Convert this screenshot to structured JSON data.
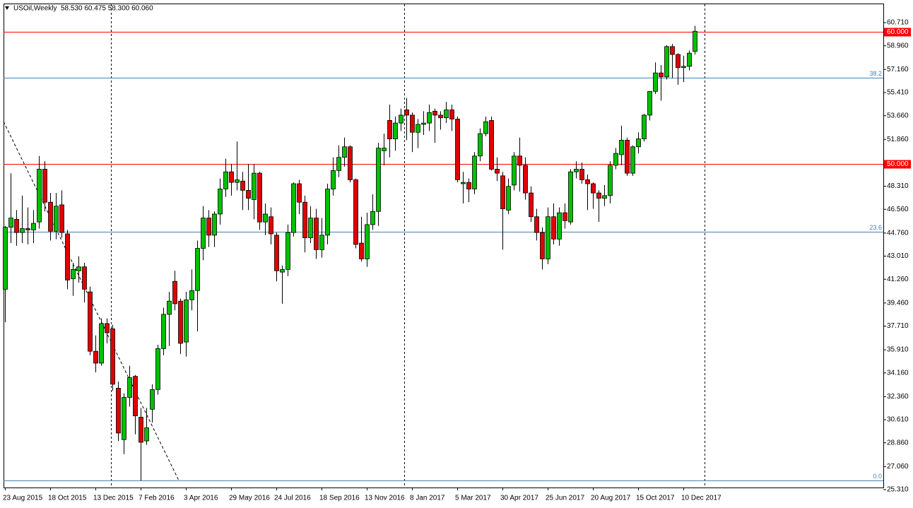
{
  "chart_data": {
    "type": "candlestick",
    "symbol": "USOil,Weekly",
    "ohlc": "58.530 60.475 58.300 60.060",
    "categories": [
      "23 Aug 2015",
      null,
      null,
      null,
      null,
      null,
      null,
      null,
      "18 Oct 2015",
      null,
      null,
      null,
      null,
      null,
      null,
      null,
      "13 Dec 2015",
      null,
      null,
      null,
      null,
      null,
      null,
      null,
      "7 Feb 2016",
      null,
      null,
      null,
      null,
      null,
      null,
      null,
      "3 Apr 2016",
      null,
      null,
      null,
      null,
      null,
      null,
      null,
      "29 May 2016",
      null,
      null,
      null,
      null,
      null,
      null,
      null,
      "24 Jul 2016",
      null,
      null,
      null,
      null,
      null,
      null,
      null,
      "18 Sep 2016",
      null,
      null,
      null,
      null,
      null,
      null,
      null,
      "13 Nov 2016",
      null,
      null,
      null,
      null,
      null,
      null,
      null,
      "8 Jan 2017",
      null,
      null,
      null,
      null,
      null,
      null,
      null,
      "5 Mar 2017",
      null,
      null,
      null,
      null,
      null,
      null,
      null,
      "30 Apr 2017",
      null,
      null,
      null,
      null,
      null,
      null,
      null,
      "25 Jun 2017",
      null,
      null,
      null,
      null,
      null,
      null,
      null,
      "20 Aug 2017",
      null,
      null,
      null,
      null,
      null,
      null,
      null,
      "15 Oct 2017",
      null,
      null,
      null,
      null,
      null,
      null,
      null,
      "10 Dec 2017",
      null,
      null
    ],
    "open": [
      40.5,
      45.2,
      45.8,
      44.8,
      45.1,
      45.0,
      45.6,
      49.6,
      47.1,
      44.9,
      46.9,
      44.7,
      41.3,
      41.9,
      42.2,
      40.3,
      35.8,
      34.9,
      37.9,
      37.5,
      33.0,
      29.1,
      32.3,
      33.9,
      30.8,
      29.0,
      31.4,
      32.9,
      36.0,
      38.6,
      41.1,
      39.6,
      36.5,
      39.7,
      40.4,
      43.6,
      45.9,
      44.6,
      46.2,
      48.1,
      49.4,
      48.6,
      48.7,
      48.0,
      47.3,
      49.3,
      45.6,
      46.0,
      44.6,
      41.8,
      42.0,
      44.8,
      48.5,
      47.1,
      44.4,
      45.9,
      43.5,
      44.6,
      48.1,
      49.5,
      50.5,
      51.3,
      48.8,
      44.0,
      42.8,
      45.4,
      46.4,
      51.0,
      53.3,
      51.9,
      53.1,
      54.1,
      53.7,
      52.4,
      53.0,
      53.1,
      54.0,
      53.7,
      53.5,
      54.1,
      53.4,
      48.5,
      48.6,
      48.1,
      50.6,
      52.3,
      53.3,
      49.6,
      49.1,
      46.5,
      48.4,
      50.6,
      49.9,
      47.8,
      46.0,
      44.8,
      42.8,
      46.0,
      44.3,
      46.3,
      45.6,
      49.4,
      49.6,
      48.8,
      48.5,
      47.8,
      47.4,
      47.6,
      49.9,
      50.7,
      51.8,
      49.3,
      51.3,
      51.9,
      53.7,
      55.5,
      56.9,
      56.6,
      58.9,
      58.3,
      57.3,
      57.4,
      58.53
    ],
    "high": [
      45.3,
      49.3,
      46.5,
      47.6,
      46.7,
      46.5,
      50.6,
      50.2,
      47.8,
      47.8,
      48.0,
      45.0,
      42.5,
      43.0,
      42.5,
      40.7,
      37.0,
      38.3,
      38.3,
      37.8,
      33.5,
      32.6,
      34.7,
      34.0,
      31.5,
      31.5,
      33.3,
      36.3,
      39.1,
      40.3,
      41.9,
      39.8,
      40.3,
      42.0,
      44.2,
      46.8,
      46.5,
      46.4,
      48.9,
      50.4,
      50.0,
      51.7,
      49.4,
      50.0,
      50.0,
      49.4,
      47.0,
      46.7,
      44.8,
      42.3,
      45.4,
      48.6,
      48.8,
      47.6,
      46.8,
      46.6,
      45.9,
      48.5,
      50.5,
      51.4,
      52.0,
      51.4,
      48.9,
      46.0,
      46.3,
      47.7,
      51.6,
      52.3,
      54.5,
      53.6,
      54.2,
      55.0,
      53.9,
      53.4,
      54.0,
      54.5,
      54.2,
      54.0,
      54.7,
      54.5,
      53.6,
      49.4,
      48.9,
      50.9,
      52.7,
      53.6,
      53.6,
      50.5,
      49.4,
      48.9,
      50.9,
      52.0,
      50.5,
      48.3,
      46.6,
      45.2,
      46.7,
      47.0,
      46.7,
      47.0,
      49.6,
      50.2,
      50.1,
      49.2,
      48.6,
      48.0,
      48.4,
      50.2,
      51.2,
      52.9,
      52.0,
      51.4,
      52.4,
      53.8,
      55.5,
      57.7,
      57.5,
      59.0,
      59.1,
      58.4,
      58.2,
      58.6,
      60.475
    ],
    "low": [
      38.0,
      44.0,
      43.8,
      44.0,
      43.9,
      44.0,
      45.1,
      46.4,
      44.2,
      44.3,
      44.4,
      40.5,
      40.0,
      41.0,
      39.5,
      35.5,
      34.2,
      34.7,
      36.4,
      32.8,
      29.0,
      28.0,
      31.6,
      29.5,
      26.0,
      28.7,
      30.4,
      32.5,
      35.5,
      36.2,
      38.9,
      35.6,
      35.4,
      38.9,
      37.3,
      42.7,
      43.7,
      43.7,
      45.4,
      47.5,
      47.6,
      48.0,
      46.5,
      46.5,
      45.8,
      45.0,
      44.6,
      43.9,
      41.1,
      39.4,
      41.5,
      44.5,
      46.2,
      43.3,
      44.0,
      42.8,
      42.9,
      43.9,
      47.6,
      49.0,
      49.8,
      48.6,
      43.6,
      42.6,
      42.2,
      45.0,
      45.3,
      49.9,
      50.5,
      51.0,
      52.5,
      51.8,
      50.9,
      51.2,
      52.2,
      52.5,
      51.6,
      52.6,
      53.1,
      52.5,
      48.6,
      47.0,
      47.1,
      47.7,
      50.2,
      52.1,
      49.5,
      48.7,
      43.5,
      46.2,
      48.0,
      47.9,
      47.3,
      45.6,
      44.2,
      42.0,
      42.4,
      43.9,
      43.8,
      45.1,
      45.4,
      48.9,
      48.5,
      46.5,
      46.6,
      45.6,
      46.8,
      47.0,
      49.6,
      49.9,
      49.1,
      49.1,
      50.8,
      51.7,
      53.3,
      55.3,
      54.8,
      56.4,
      56.5,
      56.0,
      56.2,
      57.1,
      58.3
    ],
    "close": [
      45.2,
      45.9,
      44.8,
      45.1,
      45.0,
      45.5,
      49.6,
      47.1,
      44.9,
      46.8,
      44.8,
      41.2,
      42.0,
      42.2,
      40.5,
      35.8,
      34.9,
      37.9,
      37.2,
      33.3,
      29.6,
      32.3,
      33.8,
      30.9,
      28.9,
      30.0,
      32.9,
      36.0,
      38.6,
      39.6,
      39.4,
      36.4,
      39.7,
      40.4,
      43.6,
      45.9,
      44.6,
      46.2,
      48.1,
      49.4,
      48.6,
      48.8,
      48.0,
      47.4,
      49.3,
      45.6,
      46.2,
      44.7,
      41.9,
      42.0,
      44.8,
      48.5,
      47.1,
      44.4,
      45.9,
      43.5,
      44.6,
      48.1,
      49.5,
      50.5,
      51.3,
      48.8,
      43.9,
      42.8,
      45.4,
      46.4,
      51.2,
      51.2,
      51.9,
      53.1,
      53.7,
      53.7,
      52.4,
      53.0,
      53.1,
      53.9,
      53.7,
      53.5,
      54.1,
      53.4,
      48.8,
      48.6,
      48.1,
      50.6,
      52.3,
      53.2,
      49.6,
      49.3,
      46.6,
      48.3,
      50.6,
      49.9,
      47.8,
      46.0,
      44.8,
      42.8,
      46.0,
      44.3,
      46.3,
      45.7,
      49.4,
      49.6,
      48.8,
      48.5,
      47.8,
      47.4,
      47.6,
      49.9,
      50.8,
      51.8,
      49.3,
      51.3,
      51.9,
      53.7,
      55.5,
      56.9,
      56.6,
      58.9,
      58.3,
      57.3,
      57.4,
      58.4,
      60.06
    ],
    "up_color": "#00c000",
    "down_color": "#e00000",
    "wick_color": "#000000",
    "ylim": [
      25.31,
      62.16
    ],
    "yticks": [
      {
        "value": 25.31,
        "label": "25.310"
      },
      {
        "value": 27.06,
        "label": "27.060"
      },
      {
        "value": 28.86,
        "label": "28.860"
      },
      {
        "value": 30.61,
        "label": "30.610"
      },
      {
        "value": 32.36,
        "label": "32.360"
      },
      {
        "value": 34.16,
        "label": "34.160"
      },
      {
        "value": 35.91,
        "label": "35.910"
      },
      {
        "value": 37.71,
        "label": "37.710"
      },
      {
        "value": 39.46,
        "label": "39.460"
      },
      {
        "value": 41.26,
        "label": "41.260"
      },
      {
        "value": 43.01,
        "label": "43.010"
      },
      {
        "value": 44.76,
        "label": "44.760"
      },
      {
        "value": 46.56,
        "label": "46.560"
      },
      {
        "value": 48.31,
        "label": "48.310"
      },
      {
        "value": 51.86,
        "label": "51.860"
      },
      {
        "value": 53.66,
        "label": "53.660"
      },
      {
        "value": 55.41,
        "label": "55.410"
      },
      {
        "value": 57.16,
        "label": "57.160"
      },
      {
        "value": 58.96,
        "label": "58.960"
      },
      {
        "value": 60.71,
        "label": "60.710"
      }
    ],
    "grid": false,
    "hlines": [
      {
        "value": 60,
        "label": "60.000",
        "color": "#ff0000"
      },
      {
        "value": 50,
        "label": "50.000",
        "color": "#ff0000"
      }
    ],
    "fibo_color": "#4682b4",
    "fibo": [
      {
        "level": "38.2",
        "price": 56.53
      },
      {
        "level": "23.6",
        "price": 44.86
      },
      {
        "level": "0.0",
        "price": 26.0
      }
    ]
  }
}
